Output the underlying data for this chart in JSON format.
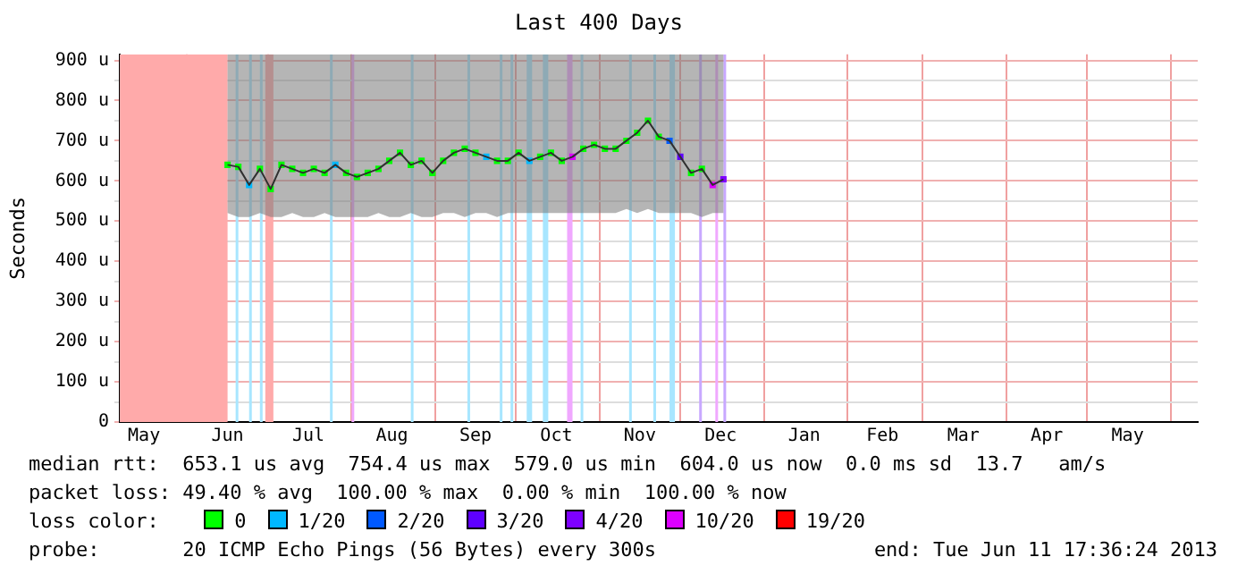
{
  "chart_data": {
    "type": "line",
    "title": "Last 400 Days",
    "ylabel": "Seconds",
    "legend_title": "loss color:",
    "legend": "bottom",
    "marker": "square",
    "grid": true,
    "xlim": [
      "2012-05-07",
      "2013-06-11"
    ],
    "xticks": [
      {
        "value": "2012-05-16",
        "label": "May"
      },
      {
        "value": "2012-06-01",
        "label": null
      },
      {
        "value": "2012-06-16",
        "label": "Jun"
      },
      {
        "value": "2012-07-01",
        "label": null
      },
      {
        "value": "2012-07-16",
        "label": "Jul"
      },
      {
        "value": "2012-08-01",
        "label": null
      },
      {
        "value": "2012-08-16",
        "label": "Aug"
      },
      {
        "value": "2012-09-01",
        "label": null
      },
      {
        "value": "2012-09-16",
        "label": "Sep"
      },
      {
        "value": "2012-10-01",
        "label": null
      },
      {
        "value": "2012-10-16",
        "label": "Oct"
      },
      {
        "value": "2012-11-01",
        "label": null
      },
      {
        "value": "2012-11-16",
        "label": "Nov"
      },
      {
        "value": "2012-12-01",
        "label": null
      },
      {
        "value": "2012-12-16",
        "label": "Dec"
      },
      {
        "value": "2013-01-01",
        "label": null
      },
      {
        "value": "2013-01-16",
        "label": "Jan"
      },
      {
        "value": "2013-02-01",
        "label": null
      },
      {
        "value": "2013-02-14",
        "label": "Feb"
      },
      {
        "value": "2013-03-01",
        "label": null
      },
      {
        "value": "2013-03-16",
        "label": "Mar"
      },
      {
        "value": "2013-04-01",
        "label": null
      },
      {
        "value": "2013-04-16",
        "label": "Apr"
      },
      {
        "value": "2013-05-01",
        "label": null
      },
      {
        "value": "2013-05-16",
        "label": "May"
      },
      {
        "value": "2013-06-01",
        "label": null
      }
    ],
    "ylim": [
      0,
      915
    ],
    "yticks": [
      0,
      {
        "value": 50,
        "label": null
      },
      {
        "value": 100,
        "label": "100 u"
      },
      {
        "value": 150,
        "label": null
      },
      {
        "value": 200,
        "label": "200 u"
      },
      {
        "value": 250,
        "label": null
      },
      {
        "value": 300,
        "label": "300 u"
      },
      {
        "value": 350,
        "label": null
      },
      {
        "value": 400,
        "label": "400 u"
      },
      {
        "value": 450,
        "label": null
      },
      {
        "value": 500,
        "label": "500 u"
      },
      {
        "value": 550,
        "label": null
      },
      {
        "value": 600,
        "label": "600 u"
      },
      {
        "value": 650,
        "label": null
      },
      {
        "value": 700,
        "label": "700 u"
      },
      {
        "value": 750,
        "label": null
      },
      {
        "value": 800,
        "label": "800 u"
      },
      {
        "value": 850,
        "label": null
      },
      {
        "value": 900,
        "label": "900 u"
      }
    ],
    "x": [
      "2012-06-16",
      "2012-06-20",
      "2012-06-24",
      "2012-06-28",
      "2012-07-02",
      "2012-07-06",
      "2012-07-10",
      "2012-07-14",
      "2012-07-18",
      "2012-07-22",
      "2012-07-26",
      "2012-07-30",
      "2012-08-03",
      "2012-08-07",
      "2012-08-11",
      "2012-08-15",
      "2012-08-19",
      "2012-08-23",
      "2012-08-27",
      "2012-08-31",
      "2012-09-04",
      "2012-09-08",
      "2012-09-12",
      "2012-09-16",
      "2012-09-20",
      "2012-09-24",
      "2012-09-28",
      "2012-10-02",
      "2012-10-06",
      "2012-10-10",
      "2012-10-14",
      "2012-10-18",
      "2012-10-22",
      "2012-10-26",
      "2012-10-30",
      "2012-11-03",
      "2012-11-07",
      "2012-11-11",
      "2012-11-15",
      "2012-11-19",
      "2012-11-23",
      "2012-11-27",
      "2012-12-01",
      "2012-12-05",
      "2012-12-09",
      "2012-12-13",
      "2012-12-17"
    ],
    "series": [
      {
        "color": "#303030",
        "marker": "none",
        "values": [
          640,
          635,
          590,
          630,
          580,
          640,
          630,
          620,
          630,
          620,
          640,
          620,
          610,
          620,
          630,
          650,
          670,
          640,
          650,
          620,
          650,
          670,
          680,
          670,
          660,
          650,
          650,
          670,
          650,
          660,
          670,
          650,
          660,
          680,
          690,
          680,
          680,
          700,
          720,
          750,
          710,
          700,
          660,
          620,
          630,
          590,
          604
        ],
        "lower": [
          520,
          510,
          510,
          520,
          510,
          510,
          520,
          510,
          510,
          520,
          510,
          510,
          510,
          510,
          520,
          510,
          510,
          520,
          510,
          510,
          520,
          520,
          510,
          520,
          520,
          510,
          520,
          520,
          520,
          520,
          520,
          520,
          520,
          520,
          520,
          520,
          520,
          530,
          520,
          530,
          520,
          520,
          520,
          520,
          510,
          520,
          520
        ],
        "upper": [
          915,
          915,
          915,
          915,
          915,
          915,
          915,
          915,
          915,
          915,
          915,
          915,
          915,
          915,
          915,
          915,
          915,
          915,
          915,
          915,
          915,
          915,
          915,
          915,
          915,
          915,
          915,
          915,
          915,
          915,
          915,
          915,
          915,
          915,
          915,
          915,
          915,
          915,
          915,
          915,
          915,
          915,
          915,
          915,
          915,
          915,
          915
        ]
      },
      {
        "type": "scatter",
        "name": "0",
        "color": "#00ff00",
        "values": [
          640,
          635,
          null,
          630,
          580,
          640,
          630,
          620,
          630,
          620,
          null,
          620,
          610,
          620,
          630,
          650,
          670,
          640,
          650,
          620,
          650,
          670,
          680,
          670,
          null,
          650,
          650,
          670,
          null,
          660,
          670,
          650,
          null,
          680,
          690,
          680,
          680,
          700,
          720,
          750,
          710,
          null,
          null,
          620,
          630,
          null,
          null
        ]
      },
      {
        "type": "scatter",
        "name": "1/20",
        "color": "#00b8ff",
        "values": [
          null,
          null,
          590,
          null,
          null,
          null,
          null,
          null,
          null,
          null,
          640,
          null,
          null,
          null,
          null,
          null,
          null,
          null,
          null,
          null,
          null,
          null,
          null,
          null,
          660,
          null,
          null,
          null,
          650,
          null,
          null,
          null,
          null,
          null,
          null,
          null,
          null,
          null,
          null,
          null,
          null,
          null,
          null,
          null,
          null,
          null,
          null
        ]
      },
      {
        "type": "scatter",
        "name": "2/20",
        "color": "#0059ff",
        "values": [
          null,
          null,
          null,
          null,
          null,
          null,
          null,
          null,
          null,
          null,
          null,
          null,
          null,
          null,
          null,
          null,
          null,
          null,
          null,
          null,
          null,
          null,
          null,
          null,
          null,
          null,
          null,
          null,
          null,
          null,
          null,
          null,
          null,
          null,
          null,
          null,
          null,
          null,
          null,
          null,
          null,
          700,
          null,
          null,
          null,
          null,
          null
        ]
      },
      {
        "type": "scatter",
        "name": "3/20",
        "color": "#5e00ff",
        "values": [
          null,
          null,
          null,
          null,
          null,
          null,
          null,
          null,
          null,
          null,
          null,
          null,
          null,
          null,
          null,
          null,
          null,
          null,
          null,
          null,
          null,
          null,
          null,
          null,
          null,
          null,
          null,
          null,
          null,
          null,
          null,
          null,
          null,
          null,
          null,
          null,
          null,
          null,
          null,
          null,
          null,
          null,
          660,
          null,
          null,
          null,
          null
        ]
      },
      {
        "type": "scatter",
        "name": "4/20",
        "color": "#7e00ff",
        "values": [
          null,
          null,
          null,
          null,
          null,
          null,
          null,
          null,
          null,
          null,
          null,
          null,
          null,
          null,
          null,
          null,
          null,
          null,
          null,
          null,
          null,
          null,
          null,
          null,
          null,
          null,
          null,
          null,
          null,
          null,
          null,
          null,
          null,
          null,
          null,
          null,
          null,
          null,
          null,
          null,
          null,
          null,
          null,
          null,
          null,
          null,
          604
        ]
      },
      {
        "type": "scatter",
        "name": "10/20",
        "color": "#dd00ff",
        "values": [
          null,
          null,
          null,
          null,
          null,
          null,
          null,
          null,
          null,
          null,
          null,
          null,
          null,
          null,
          null,
          null,
          null,
          null,
          null,
          null,
          null,
          null,
          null,
          null,
          null,
          null,
          null,
          null,
          null,
          null,
          null,
          null,
          660,
          null,
          null,
          null,
          null,
          null,
          null,
          null,
          null,
          null,
          null,
          null,
          null,
          590,
          null
        ]
      },
      {
        "type": "scatter",
        "name": "19/20",
        "color": "#ff0000",
        "values": [
          null,
          null,
          null,
          null,
          null,
          null,
          null,
          null,
          null,
          null,
          null,
          null,
          null,
          null,
          null,
          null,
          null,
          null,
          null,
          null,
          null,
          null,
          null,
          null,
          null,
          null,
          null,
          null,
          null,
          null,
          null,
          null,
          null,
          null,
          null,
          null,
          null,
          null,
          null,
          null,
          null,
          null,
          null,
          null,
          null,
          null,
          null
        ]
      }
    ],
    "bands": [
      {
        "axis": "x",
        "from": "2012-05-07",
        "to": "2012-06-16",
        "color": "#ffaaaa"
      },
      {
        "axis": "x",
        "from": "2012-06-30",
        "to": "2012-07-03",
        "color": "#ffaaaa"
      },
      {
        "axis": "x",
        "from": "2012-06-19",
        "to": "2012-06-20",
        "color": "#a8e6ff"
      },
      {
        "axis": "x",
        "from": "2012-06-24",
        "to": "2012-06-25",
        "color": "#a8e6ff"
      },
      {
        "axis": "x",
        "from": "2012-06-28",
        "to": "2012-06-29",
        "color": "#a8e6ff"
      },
      {
        "axis": "x",
        "from": "2012-07-24",
        "to": "2012-07-25",
        "color": "#a8e6ff"
      },
      {
        "axis": "x",
        "from": "2012-08-01",
        "to": "2012-08-02",
        "color": "#f0a8ff"
      },
      {
        "axis": "x",
        "from": "2012-08-23",
        "to": "2012-08-24",
        "color": "#a8e6ff"
      },
      {
        "axis": "x",
        "from": "2012-09-13",
        "to": "2012-09-14",
        "color": "#a8e6ff"
      },
      {
        "axis": "x",
        "from": "2012-09-25",
        "to": "2012-09-26",
        "color": "#a8e6ff"
      },
      {
        "axis": "x",
        "from": "2012-09-29",
        "to": "2012-09-30",
        "color": "#a8e6ff"
      },
      {
        "axis": "x",
        "from": "2012-10-05",
        "to": "2012-10-07",
        "color": "#a8e6ff"
      },
      {
        "axis": "x",
        "from": "2012-10-11",
        "to": "2012-10-13",
        "color": "#a8e6ff"
      },
      {
        "axis": "x",
        "from": "2012-10-20",
        "to": "2012-10-22",
        "color": "#f0a8ff"
      },
      {
        "axis": "x",
        "from": "2012-10-25",
        "to": "2012-10-26",
        "color": "#a8e6ff"
      },
      {
        "axis": "x",
        "from": "2012-11-12",
        "to": "2012-11-13",
        "color": "#a8e6ff"
      },
      {
        "axis": "x",
        "from": "2012-11-21",
        "to": "2012-11-22",
        "color": "#a8e6ff"
      },
      {
        "axis": "x",
        "from": "2012-11-27",
        "to": "2012-11-29",
        "color": "#a8e6ff"
      },
      {
        "axis": "x",
        "from": "2012-12-08",
        "to": "2012-12-09",
        "color": "#c8a8ff"
      },
      {
        "axis": "x",
        "from": "2012-12-14",
        "to": "2012-12-15",
        "color": "#f0a8ff"
      },
      {
        "axis": "x",
        "from": "2012-12-17",
        "to": "2012-12-18",
        "color": "#c8a8ff"
      }
    ],
    "annotations": [
      "median rtt:  653.1 us avg  754.4 us max  579.0 us min  604.0 us now  0.0 ms sd  13.7   am/s",
      "packet loss: 49.40 % avg  100.00 % max  0.00 % min  100.00 % now",
      "probe:       20 ICMP Echo Pings (56 Bytes) every 300s",
      "end: Tue Jun 11 17:36:24 2013"
    ]
  }
}
